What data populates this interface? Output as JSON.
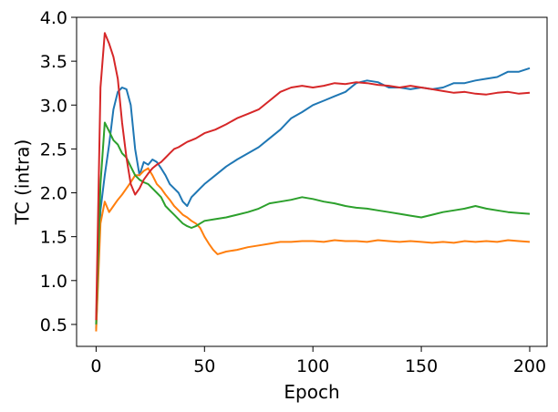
{
  "chart_data": {
    "type": "line",
    "xlabel": "Epoch",
    "ylabel": "TC (intra)",
    "xlim": [
      -9,
      208
    ],
    "ylim": [
      0.25,
      4.0
    ],
    "xticks": [
      0,
      50,
      100,
      150,
      200
    ],
    "xtick_labels": [
      "0",
      "50",
      "100",
      "150",
      "200"
    ],
    "yticks": [
      0.5,
      1.0,
      1.5,
      2.0,
      2.5,
      3.0,
      3.5,
      4.0
    ],
    "ytick_labels": [
      "0.5",
      "1.0",
      "1.5",
      "2.0",
      "2.5",
      "3.0",
      "3.5",
      "4.0"
    ],
    "grid": false,
    "series": [
      {
        "color": "#1f77b4",
        "x": [
          0,
          2,
          4,
          6,
          8,
          10,
          12,
          14,
          16,
          18,
          20,
          22,
          24,
          26,
          28,
          30,
          32,
          34,
          36,
          38,
          40,
          42,
          44,
          46,
          48,
          50,
          55,
          60,
          65,
          70,
          75,
          80,
          85,
          90,
          95,
          100,
          105,
          110,
          115,
          120,
          125,
          130,
          135,
          140,
          145,
          150,
          155,
          160,
          165,
          170,
          175,
          180,
          185,
          190,
          195,
          200
        ],
        "y": [
          0.45,
          1.8,
          2.2,
          2.55,
          2.95,
          3.15,
          3.2,
          3.18,
          3.0,
          2.5,
          2.2,
          2.35,
          2.32,
          2.38,
          2.35,
          2.28,
          2.2,
          2.1,
          2.05,
          2.0,
          1.9,
          1.85,
          1.95,
          2.0,
          2.05,
          2.1,
          2.2,
          2.3,
          2.38,
          2.45,
          2.52,
          2.62,
          2.72,
          2.85,
          2.92,
          3.0,
          3.05,
          3.1,
          3.15,
          3.25,
          3.28,
          3.26,
          3.2,
          3.2,
          3.18,
          3.2,
          3.18,
          3.2,
          3.25,
          3.25,
          3.28,
          3.3,
          3.32,
          3.38,
          3.38,
          3.42
        ]
      },
      {
        "color": "#ff7f0e",
        "x": [
          0,
          2,
          4,
          6,
          8,
          10,
          12,
          14,
          16,
          18,
          20,
          22,
          24,
          26,
          28,
          30,
          32,
          34,
          36,
          38,
          40,
          42,
          44,
          46,
          48,
          50,
          52,
          54,
          56,
          60,
          65,
          70,
          75,
          80,
          85,
          90,
          95,
          100,
          105,
          110,
          115,
          120,
          125,
          130,
          135,
          140,
          145,
          150,
          155,
          160,
          165,
          170,
          175,
          180,
          185,
          190,
          195,
          200
        ],
        "y": [
          0.42,
          1.65,
          1.9,
          1.78,
          1.85,
          1.92,
          1.98,
          2.05,
          2.12,
          2.2,
          2.2,
          2.25,
          2.28,
          2.2,
          2.1,
          2.05,
          1.98,
          1.92,
          1.85,
          1.8,
          1.75,
          1.72,
          1.68,
          1.65,
          1.6,
          1.5,
          1.42,
          1.35,
          1.3,
          1.33,
          1.35,
          1.38,
          1.4,
          1.42,
          1.44,
          1.44,
          1.45,
          1.45,
          1.44,
          1.46,
          1.45,
          1.45,
          1.44,
          1.46,
          1.45,
          1.44,
          1.45,
          1.44,
          1.43,
          1.44,
          1.43,
          1.45,
          1.44,
          1.45,
          1.44,
          1.46,
          1.45,
          1.44
        ]
      },
      {
        "color": "#2ca02c",
        "x": [
          0,
          2,
          4,
          6,
          8,
          10,
          12,
          14,
          16,
          18,
          20,
          22,
          24,
          26,
          28,
          30,
          32,
          34,
          36,
          38,
          40,
          42,
          44,
          46,
          48,
          50,
          55,
          60,
          65,
          70,
          75,
          80,
          85,
          90,
          95,
          100,
          105,
          110,
          115,
          120,
          125,
          130,
          135,
          140,
          145,
          150,
          155,
          160,
          165,
          170,
          175,
          180,
          185,
          190,
          195,
          200
        ],
        "y": [
          0.5,
          2.1,
          2.8,
          2.7,
          2.6,
          2.55,
          2.45,
          2.4,
          2.3,
          2.2,
          2.15,
          2.12,
          2.1,
          2.05,
          2.0,
          1.95,
          1.85,
          1.8,
          1.75,
          1.7,
          1.65,
          1.62,
          1.6,
          1.62,
          1.65,
          1.68,
          1.7,
          1.72,
          1.75,
          1.78,
          1.82,
          1.88,
          1.9,
          1.92,
          1.95,
          1.93,
          1.9,
          1.88,
          1.85,
          1.83,
          1.82,
          1.8,
          1.78,
          1.76,
          1.74,
          1.72,
          1.75,
          1.78,
          1.8,
          1.82,
          1.85,
          1.82,
          1.8,
          1.78,
          1.77,
          1.76
        ]
      },
      {
        "color": "#d62728",
        "x": [
          0,
          2,
          4,
          6,
          8,
          10,
          12,
          14,
          16,
          18,
          20,
          22,
          24,
          26,
          28,
          30,
          32,
          34,
          36,
          38,
          40,
          42,
          44,
          46,
          48,
          50,
          55,
          60,
          65,
          70,
          75,
          80,
          85,
          90,
          95,
          100,
          105,
          110,
          115,
          120,
          125,
          130,
          135,
          140,
          145,
          150,
          155,
          160,
          165,
          170,
          175,
          180,
          185,
          190,
          195,
          200
        ],
        "y": [
          0.55,
          3.2,
          3.82,
          3.7,
          3.55,
          3.3,
          2.8,
          2.4,
          2.1,
          1.98,
          2.05,
          2.15,
          2.22,
          2.28,
          2.32,
          2.35,
          2.4,
          2.45,
          2.5,
          2.52,
          2.55,
          2.58,
          2.6,
          2.62,
          2.65,
          2.68,
          2.72,
          2.78,
          2.85,
          2.9,
          2.95,
          3.05,
          3.15,
          3.2,
          3.22,
          3.2,
          3.22,
          3.25,
          3.24,
          3.26,
          3.25,
          3.23,
          3.22,
          3.2,
          3.22,
          3.2,
          3.18,
          3.16,
          3.14,
          3.15,
          3.13,
          3.12,
          3.14,
          3.15,
          3.13,
          3.14
        ]
      }
    ]
  }
}
